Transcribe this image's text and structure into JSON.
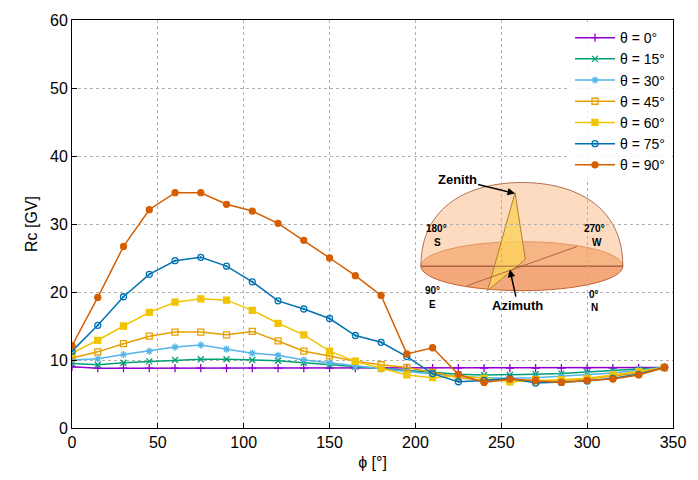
{
  "chart_data": {
    "type": "line",
    "x_label": "ϕ [°]",
    "y_label": "Rc [GV]",
    "x": [
      0,
      15,
      30,
      45,
      60,
      75,
      90,
      105,
      120,
      135,
      150,
      165,
      180,
      195,
      210,
      225,
      240,
      255,
      270,
      285,
      300,
      315,
      330,
      345
    ],
    "series": [
      {
        "name": "θ = 0°",
        "color": "#9400d3",
        "marker": "plus",
        "values": [
          9.0,
          8.8,
          8.8,
          8.8,
          8.8,
          8.8,
          8.8,
          8.8,
          8.8,
          8.8,
          8.8,
          8.8,
          8.8,
          8.8,
          8.8,
          8.8,
          8.8,
          8.8,
          8.8,
          8.8,
          8.8,
          8.8,
          8.8,
          8.9
        ]
      },
      {
        "name": "θ = 15°",
        "color": "#009e73",
        "marker": "x",
        "values": [
          9.5,
          9.3,
          9.6,
          9.8,
          10.0,
          10.1,
          10.1,
          10.0,
          9.9,
          9.6,
          9.3,
          9.0,
          8.7,
          8.4,
          8.1,
          7.9,
          7.8,
          7.8,
          7.9,
          8.0,
          8.2,
          8.4,
          8.6,
          8.9
        ]
      },
      {
        "name": "θ = 30°",
        "color": "#56b4e9",
        "marker": "asterisk",
        "values": [
          10.0,
          10.2,
          10.8,
          11.3,
          11.9,
          12.2,
          11.6,
          11.0,
          10.7,
          10.0,
          9.6,
          9.1,
          8.7,
          8.3,
          7.9,
          7.6,
          7.4,
          7.3,
          7.4,
          7.6,
          7.8,
          8.1,
          8.5,
          8.9
        ]
      },
      {
        "name": "θ = 45°",
        "color": "#e69f00",
        "marker": "square-open",
        "values": [
          10.3,
          11.2,
          12.4,
          13.5,
          14.1,
          14.1,
          13.7,
          14.2,
          12.8,
          11.3,
          10.6,
          9.8,
          9.3,
          8.9,
          8.2,
          7.4,
          7.0,
          7.0,
          7.1,
          7.0,
          7.2,
          7.6,
          8.1,
          8.9
        ]
      },
      {
        "name": "θ = 60°",
        "color": "#f0c400",
        "marker": "square",
        "values": [
          11.0,
          12.9,
          15.0,
          17.0,
          18.5,
          19.0,
          18.8,
          17.3,
          15.4,
          13.7,
          11.3,
          9.8,
          8.8,
          7.8,
          7.4,
          7.7,
          7.3,
          6.8,
          6.9,
          7.1,
          7.3,
          7.8,
          8.3,
          8.9
        ]
      },
      {
        "name": "θ = 75°",
        "color": "#0072b2",
        "marker": "circle-open-dot",
        "values": [
          11.3,
          15.1,
          19.3,
          22.6,
          24.6,
          25.1,
          23.8,
          21.5,
          18.7,
          17.5,
          16.1,
          13.6,
          12.6,
          10.5,
          8.0,
          6.8,
          7.0,
          7.3,
          6.6,
          6.7,
          6.9,
          7.3,
          7.9,
          8.9
        ]
      },
      {
        "name": "θ = 90°",
        "color": "#d55e00",
        "marker": "circle",
        "values": [
          12.1,
          19.2,
          26.7,
          32.1,
          34.6,
          34.6,
          32.9,
          31.9,
          30.1,
          27.6,
          25.0,
          22.4,
          19.5,
          10.9,
          11.8,
          7.9,
          6.7,
          7.2,
          7.0,
          6.7,
          7.0,
          7.2,
          7.8,
          8.9
        ]
      }
    ],
    "xlim": [
      0,
      350
    ],
    "ylim": [
      0,
      60
    ],
    "xticks": [
      0,
      50,
      100,
      150,
      200,
      250,
      300,
      350
    ],
    "yticks": [
      0,
      10,
      20,
      30,
      40,
      50,
      60
    ],
    "grid": true,
    "legend": "upper right",
    "annotations": [
      "Zenith",
      "Azimuth",
      "180°",
      "S",
      "270°",
      "W",
      "90°",
      "E",
      "0°",
      "N"
    ]
  }
}
